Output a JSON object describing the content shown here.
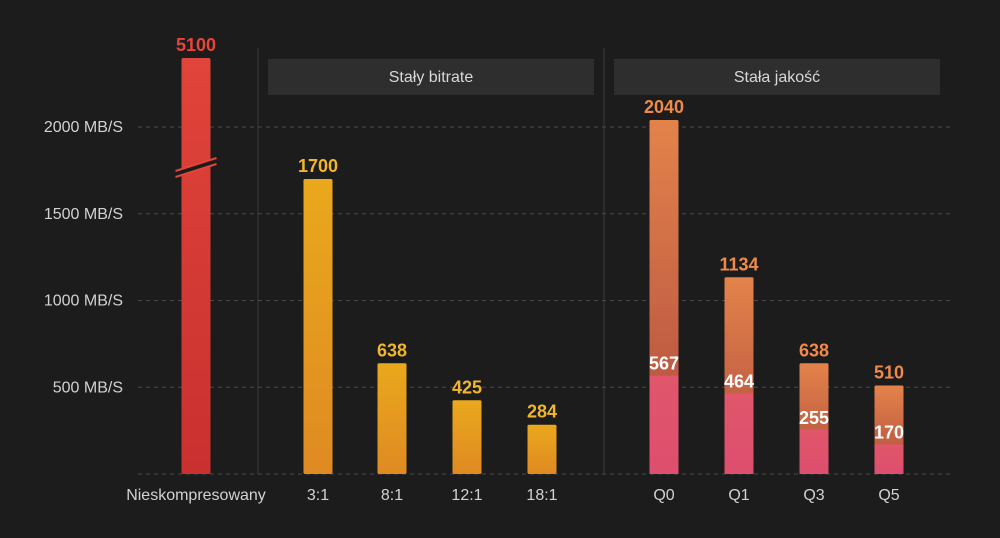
{
  "chart_data": {
    "type": "bar",
    "y_unit": "MB/S",
    "ylim": [
      0,
      2200
    ],
    "yticks": [
      {
        "value": 500,
        "label": "500 MB/S"
      },
      {
        "value": 1000,
        "label": "1000 MB/S"
      },
      {
        "value": 1500,
        "label": "1500 MB/S"
      },
      {
        "value": 2000,
        "label": "2000 MB/S"
      }
    ],
    "grid": true,
    "axis_break": {
      "category": "Nieskompresowany"
    },
    "groups": [
      {
        "label": "",
        "categories": [
          "Nieskompresowany"
        ]
      },
      {
        "label": "Stały bitrate",
        "categories": [
          "3:1",
          "8:1",
          "12:1",
          "18:1"
        ]
      },
      {
        "label": "Stała jakość",
        "categories": [
          "Q0",
          "Q1",
          "Q3",
          "Q5"
        ]
      }
    ],
    "bars": [
      {
        "category": "Nieskompresowany",
        "value": 5100,
        "value_label": "5100",
        "color_top": "#e0443a",
        "color_bottom": "#c9302f",
        "label_color": "#e8443a"
      },
      {
        "category": "3:1",
        "value": 1700,
        "value_label": "1700",
        "color_top": "#eaa81c",
        "color_bottom": "#df8a22",
        "label_color": "#f2b62a"
      },
      {
        "category": "8:1",
        "value": 638,
        "value_label": "638",
        "color_top": "#eaa81c",
        "color_bottom": "#df8a22",
        "label_color": "#f2b62a"
      },
      {
        "category": "12:1",
        "value": 425,
        "value_label": "425",
        "color_top": "#eaa81c",
        "color_bottom": "#df8a22",
        "label_color": "#f2b62a"
      },
      {
        "category": "18:1",
        "value": 284,
        "value_label": "284",
        "color_top": "#eaa81c",
        "color_bottom": "#df8a22",
        "label_color": "#f2b62a"
      },
      {
        "category": "Q0",
        "value": 2040,
        "value_label": "2040",
        "inner_value": 567,
        "inner_label": "567",
        "color_top": "#e3834a",
        "color_bottom": "#b04a40",
        "inner_top": "#e0566a",
        "inner_bottom": "#de4e6e",
        "label_color": "#f0894a"
      },
      {
        "category": "Q1",
        "value": 1134,
        "value_label": "1134",
        "inner_value": 464,
        "inner_label": "464",
        "color_top": "#e3834a",
        "color_bottom": "#b04a40",
        "inner_top": "#e0566a",
        "inner_bottom": "#de4e6e",
        "label_color": "#f0894a"
      },
      {
        "category": "Q3",
        "value": 638,
        "value_label": "638",
        "inner_value": 255,
        "inner_label": "255",
        "color_top": "#e3834a",
        "color_bottom": "#b04a40",
        "inner_top": "#e0566a",
        "inner_bottom": "#de4e6e",
        "label_color": "#f0894a"
      },
      {
        "category": "Q5",
        "value": 510,
        "value_label": "510",
        "inner_value": 170,
        "inner_label": "170",
        "color_top": "#e3834a",
        "color_bottom": "#b04a40",
        "inner_top": "#e0566a",
        "inner_bottom": "#de4e6e",
        "label_color": "#f0894a"
      }
    ],
    "colors": {
      "background": "#1c1c1c",
      "grid": "#4a4a4a",
      "group_header": "#2e2e2e",
      "separator": "#3a3a3a"
    }
  }
}
